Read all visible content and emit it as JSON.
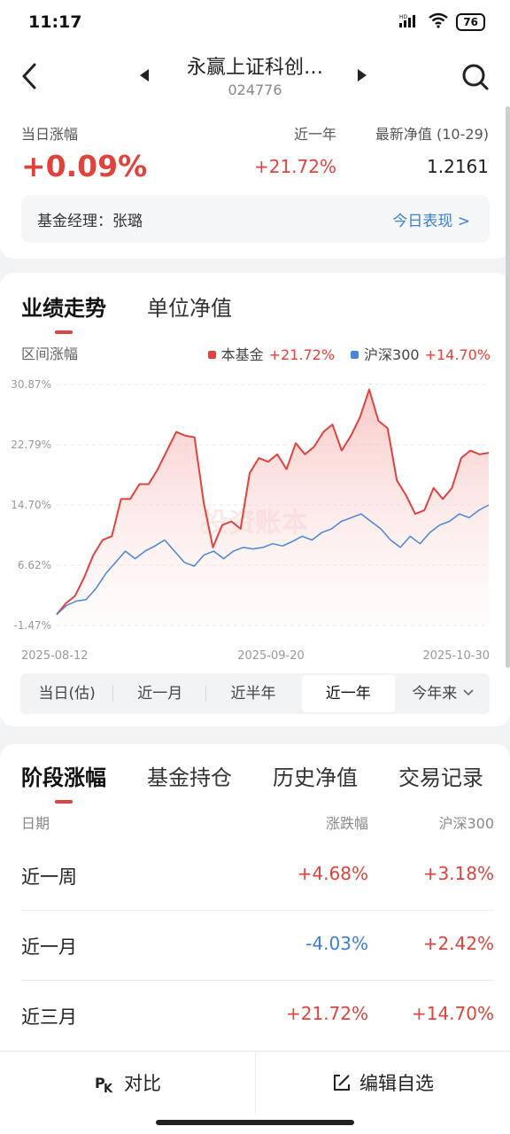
{
  "status": {
    "time": "11:17",
    "battery": "76"
  },
  "nav": {
    "title": "永赢上证科创…",
    "code": "024776"
  },
  "summary": {
    "daily_label": "当日涨幅",
    "daily_value": "+0.09%",
    "year_label": "近一年",
    "year_value": "+21.72%",
    "nav_label": "最新净值 (10-29)",
    "nav_value": "1.2161",
    "manager_label": "基金经理：张璐",
    "today_link": "今日表现 >"
  },
  "chart_tabs": [
    "业绩走势",
    "单位净值"
  ],
  "range_label": "区间涨幅",
  "legend": [
    {
      "name": "本基金",
      "value": "+21.72%",
      "color": "#e0423c"
    },
    {
      "name": "沪深300",
      "value": "+14.70%",
      "color": "#4a86d8"
    }
  ],
  "watermark": "投资账本",
  "periods": [
    "当日(估)",
    "近一月",
    "近半年",
    "近一年",
    "今年来"
  ],
  "active_period": 3,
  "chart_data": {
    "type": "line",
    "x_tick_labels": [
      "2025-08-12",
      "2025-09-20",
      "2025-10-30"
    ],
    "y_tick_labels": [
      "30.87%",
      "22.79%",
      "14.70%",
      "6.62%",
      "-1.47%"
    ],
    "ylim": [
      -1.47,
      30.87
    ],
    "grid": true,
    "series": [
      {
        "name": "本基金",
        "color": "#e0423c",
        "values": [
          0.0,
          1.5,
          2.5,
          5.0,
          8.0,
          10.0,
          10.5,
          15.5,
          15.5,
          17.5,
          17.5,
          19.5,
          22.0,
          24.5,
          24.0,
          23.8,
          15.0,
          9.0,
          12.0,
          12.5,
          11.5,
          19.0,
          21.0,
          20.5,
          21.5,
          19.5,
          23.0,
          21.5,
          22.5,
          24.5,
          25.5,
          22.0,
          24.0,
          26.5,
          30.2,
          26.0,
          25.0,
          18.0,
          16.0,
          13.5,
          14.0,
          17.0,
          15.5,
          17.0,
          21.0,
          22.0,
          21.5,
          21.7
        ]
      },
      {
        "name": "沪深300",
        "color": "#4a86d8",
        "values": [
          0.0,
          1.2,
          1.8,
          2.0,
          3.5,
          5.5,
          7.0,
          8.5,
          7.5,
          8.5,
          9.2,
          10.0,
          8.5,
          7.0,
          6.5,
          8.0,
          8.5,
          7.5,
          8.5,
          9.0,
          8.8,
          9.0,
          9.5,
          9.2,
          9.8,
          10.5,
          10.0,
          11.0,
          11.5,
          12.5,
          13.0,
          13.5,
          12.5,
          11.5,
          10.0,
          9.0,
          10.5,
          9.5,
          11.0,
          12.0,
          12.5,
          13.5,
          13.0,
          14.0,
          14.7
        ]
      }
    ]
  },
  "stage_tabs": [
    "阶段涨幅",
    "基金持仓",
    "历史净值",
    "交易记录"
  ],
  "stage_headers": {
    "date": "日期",
    "change": "涨跌幅",
    "benchmark": "沪深300"
  },
  "stage_rows": [
    {
      "name": "近一周",
      "change": "+4.68%",
      "change_dir": "up",
      "benchmark": "+3.18%"
    },
    {
      "name": "近一月",
      "change": "-4.03%",
      "change_dir": "down",
      "benchmark": "+2.42%"
    },
    {
      "name": "近三月",
      "change": "+21.72%",
      "change_dir": "up",
      "benchmark": "+14.70%"
    }
  ],
  "bottom": {
    "compare": "对比",
    "edit": "编辑自选"
  }
}
